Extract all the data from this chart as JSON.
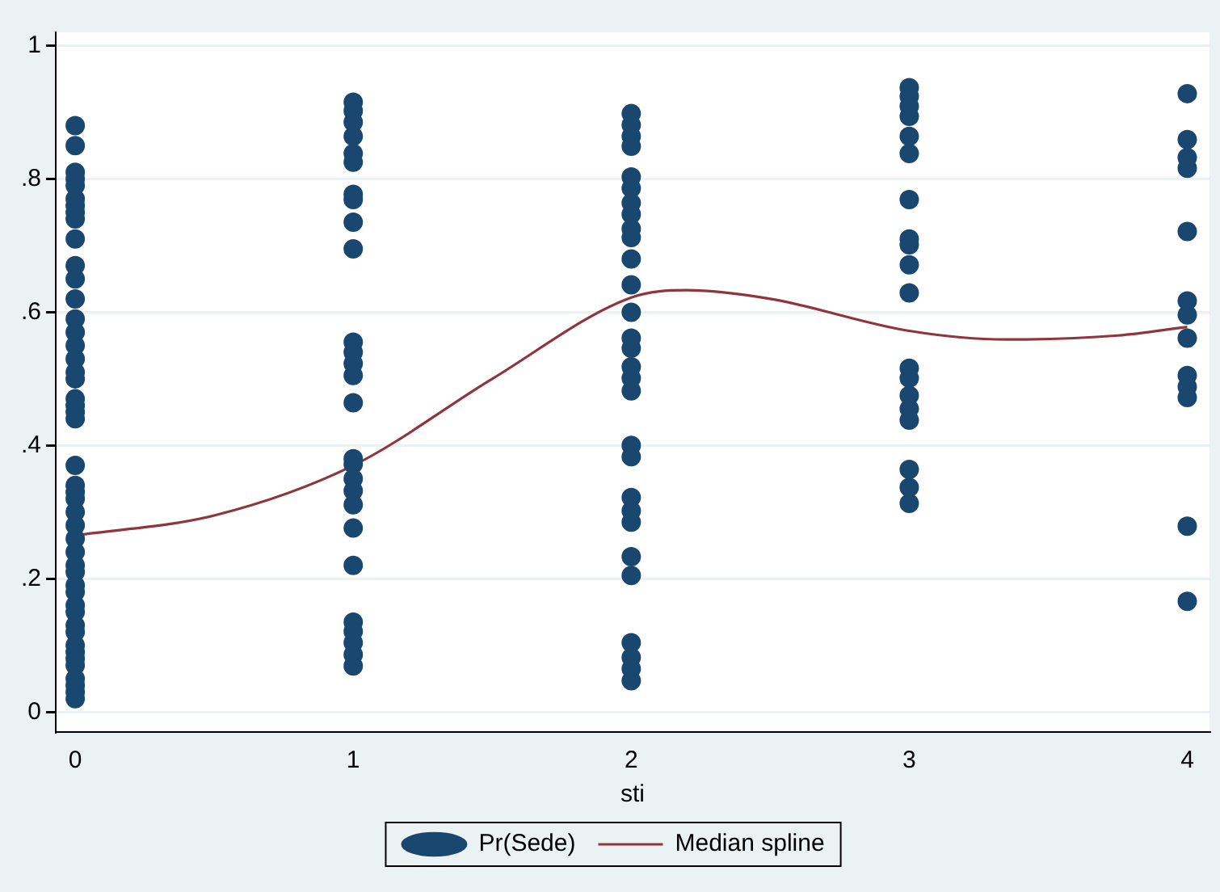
{
  "chart_data": {
    "type": "scatter",
    "xlabel": "sti",
    "xlim": [
      -0.07,
      4.08
    ],
    "xticks": [
      0,
      1,
      2,
      3,
      4
    ],
    "ylim": [
      -0.03,
      1.02
    ],
    "yticks": [
      0,
      {
        "value": 0.2,
        "label": ".2"
      },
      {
        "value": 0.4,
        "label": ".4"
      },
      {
        "value": 0.6,
        "label": ".6"
      },
      {
        "value": 0.8,
        "label": ".8"
      },
      1
    ],
    "grid": "y",
    "legend": "bottom",
    "marker": "circle",
    "series": [
      {
        "name": "Pr(Sede)",
        "color": "#1a476f",
        "x": [
          0,
          0,
          0,
          0,
          0,
          0,
          0,
          0,
          0,
          0,
          0,
          0,
          0,
          0,
          0,
          0,
          0,
          0,
          0,
          0,
          0,
          0,
          0,
          0,
          0,
          0,
          0,
          0,
          0,
          0,
          0,
          0,
          0,
          0,
          0,
          0,
          0,
          0,
          0,
          0,
          0,
          0,
          0,
          0,
          0,
          0,
          0,
          1,
          1,
          1,
          1,
          1,
          1,
          1,
          1,
          1,
          1,
          1,
          1,
          1,
          1,
          1,
          1,
          1,
          1,
          1,
          1,
          1,
          1,
          1,
          1,
          1,
          1,
          1,
          2,
          2,
          2,
          2,
          2,
          2,
          2,
          2,
          2,
          2,
          2,
          2,
          2,
          2,
          2,
          2,
          2,
          2,
          2,
          2,
          2,
          2,
          2,
          2,
          2,
          2,
          2,
          2,
          2,
          3,
          3,
          3,
          3,
          3,
          3,
          3,
          3,
          3,
          3,
          3,
          3,
          3,
          3,
          3,
          3,
          3,
          3,
          3,
          4,
          4,
          4,
          4,
          4,
          4,
          4,
          4,
          4,
          4,
          4,
          4,
          4
        ],
        "values": [
          0.88,
          0.85,
          0.81,
          0.8,
          0.79,
          0.77,
          0.76,
          0.75,
          0.74,
          0.71,
          0.67,
          0.65,
          0.62,
          0.59,
          0.57,
          0.55,
          0.53,
          0.51,
          0.5,
          0.47,
          0.46,
          0.45,
          0.44,
          0.37,
          0.34,
          0.33,
          0.32,
          0.3,
          0.28,
          0.26,
          0.24,
          0.22,
          0.21,
          0.19,
          0.18,
          0.16,
          0.15,
          0.13,
          0.12,
          0.1,
          0.09,
          0.08,
          0.07,
          0.05,
          0.04,
          0.03,
          0.02,
          0.915,
          0.902,
          0.885,
          0.864,
          0.838,
          0.825,
          0.777,
          0.769,
          0.735,
          0.695,
          0.555,
          0.54,
          0.523,
          0.505,
          0.464,
          0.38,
          0.372,
          0.35,
          0.332,
          0.311,
          0.276,
          0.22,
          0.135,
          0.121,
          0.104,
          0.086,
          0.069,
          0.898,
          0.881,
          0.864,
          0.849,
          0.803,
          0.786,
          0.764,
          0.747,
          0.725,
          0.712,
          0.68,
          0.641,
          0.6,
          0.561,
          0.546,
          0.518,
          0.501,
          0.482,
          0.4,
          0.383,
          0.322,
          0.302,
          0.285,
          0.233,
          0.205,
          0.104,
          0.082,
          0.065,
          0.047,
          0.937,
          0.924,
          0.909,
          0.894,
          0.864,
          0.838,
          0.769,
          0.71,
          0.701,
          0.671,
          0.629,
          0.516,
          0.501,
          0.475,
          0.455,
          0.438,
          0.364,
          0.337,
          0.313,
          0.928,
          0.859,
          0.832,
          0.816,
          0.721,
          0.617,
          0.596,
          0.561,
          0.505,
          0.488,
          0.472,
          0.279,
          0.166
        ]
      },
      {
        "name": "Median spline",
        "type": "line",
        "color": "#90353b",
        "marker": "none",
        "x": [
          0,
          0.5,
          1,
          1.5,
          2,
          2.2,
          2.5,
          3,
          3.35,
          3.75,
          4
        ],
        "values": [
          0.265,
          0.295,
          0.37,
          0.5,
          0.622,
          0.633,
          0.62,
          0.572,
          0.559,
          0.565,
          0.578
        ]
      }
    ]
  }
}
